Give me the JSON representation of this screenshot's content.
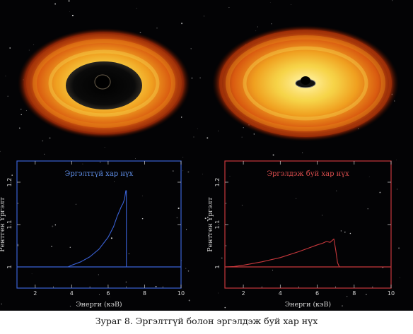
{
  "caption": "Зураг 8. Эргэлтгүй болон эргэлдэж буй хар нүх",
  "colors": {
    "left_panel": "#3a62d6",
    "right_panel": "#c8383c",
    "background": "#030305"
  },
  "illustrations": [
    {
      "name": "non-rotating-black-hole-disk"
    },
    {
      "name": "rotating-black-hole-disk"
    }
  ],
  "chart_data": [
    {
      "type": "line",
      "title": "Эргэлтгүй хар нүх",
      "xlabel": "Энерги (кэВ)",
      "ylabel": "Рентген Үргэлт",
      "xlim": [
        1,
        10
      ],
      "ylim": [
        0.95,
        1.25
      ],
      "x_ticks": [
        "2",
        "4",
        "6",
        "8",
        "10"
      ],
      "y_ticks": [
        "1",
        "1.1",
        "1.2"
      ],
      "baseline": 1.0,
      "grid": false,
      "series": [
        {
          "x": [
            3.8,
            4.0,
            4.5,
            5.0,
            5.5,
            6.0,
            6.3,
            6.5,
            6.6,
            6.7,
            6.75,
            6.8,
            6.9,
            6.97,
            7.0,
            7.0
          ],
          "y": [
            1.0,
            1.004,
            1.012,
            1.024,
            1.042,
            1.07,
            1.095,
            1.12,
            1.13,
            1.14,
            1.145,
            1.148,
            1.16,
            1.18,
            1.18,
            1.0
          ]
        }
      ]
    },
    {
      "type": "line",
      "title": "Эргэлдэж буй хар нүх",
      "xlabel": "Энерги (кэВ)",
      "ylabel": "Рентген Үргэлт",
      "xlim": [
        1,
        10
      ],
      "ylim": [
        0.95,
        1.25
      ],
      "x_ticks": [
        "2",
        "4",
        "6",
        "8",
        "10"
      ],
      "y_ticks": [
        "1",
        "1.1",
        "1.2"
      ],
      "baseline": 1.0,
      "grid": false,
      "series": [
        {
          "x": [
            1.0,
            1.5,
            2.0,
            3.0,
            4.0,
            5.0,
            5.5,
            6.0,
            6.3,
            6.5,
            6.7,
            6.9,
            7.0,
            7.1,
            7.2
          ],
          "y": [
            1.0,
            1.001,
            1.004,
            1.012,
            1.022,
            1.036,
            1.044,
            1.052,
            1.056,
            1.06,
            1.058,
            1.066,
            1.04,
            1.01,
            1.0
          ]
        }
      ]
    }
  ]
}
